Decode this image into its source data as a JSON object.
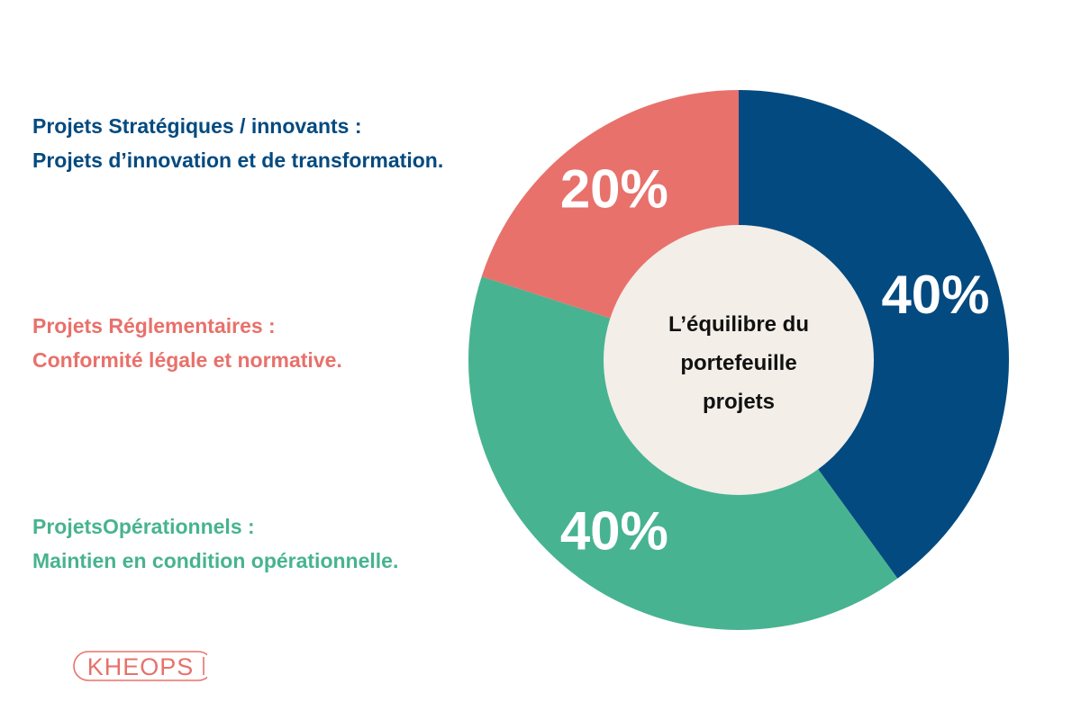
{
  "chart_data": {
    "type": "pie",
    "donut": true,
    "center_label": [
      "L’équilibre du",
      "portefeuille",
      "projets"
    ],
    "categories": [
      "Projets Stratégiques / innovants",
      "ProjetsOpérationnels",
      "Projets Réglementaires"
    ],
    "values": [
      40,
      40,
      20
    ],
    "value_labels": [
      "40%",
      "40%",
      "20%"
    ],
    "colors": [
      "#034a80",
      "#47b391",
      "#e8716b"
    ],
    "legend": [
      {
        "title": "Projets Stratégiques / innovants :",
        "description": "Projets d’innovation et de transformation.",
        "color": "#034a80"
      },
      {
        "title": "Projets Réglementaires :",
        "description": "Conformité légale et normative.",
        "color": "#e8716b"
      },
      {
        "title": "ProjetsOpérationnels :",
        "description": "Maintien en condition opérationnelle.",
        "color": "#47b391"
      }
    ],
    "legend_placement": "left",
    "center_color": "#f3eee8"
  },
  "brand": {
    "logo_text": "KHEOPS",
    "logo_color": "#e8716b"
  }
}
